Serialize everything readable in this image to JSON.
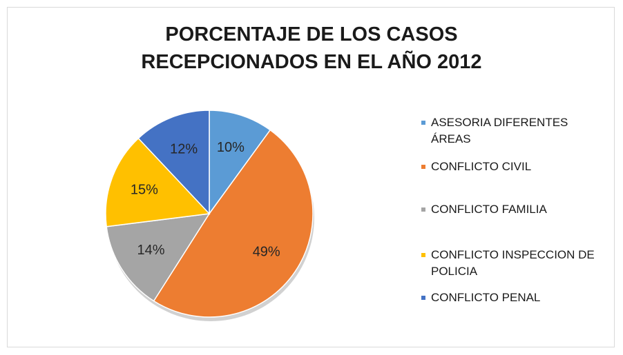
{
  "chart_data": {
    "type": "pie",
    "title": "PORCENTAJE DE LOS CASOS RECEPCIONADOS EN EL AÑO 2012",
    "categories": [
      "ASESORIA DIFERENTES ÁREAS",
      "CONFLICTO CIVIL",
      "CONFLICTO FAMILIA",
      "CONFLICTO INSPECCION DE POLICIA",
      "CONFLICTO PENAL"
    ],
    "values": [
      10,
      49,
      14,
      15,
      12
    ],
    "value_labels": [
      "10%",
      "49%",
      "14%",
      "15%",
      "12%"
    ],
    "colors": [
      "#5b9bd5",
      "#ed7d31",
      "#a5a5a5",
      "#ffc000",
      "#4472c4"
    ],
    "legend": "right"
  }
}
